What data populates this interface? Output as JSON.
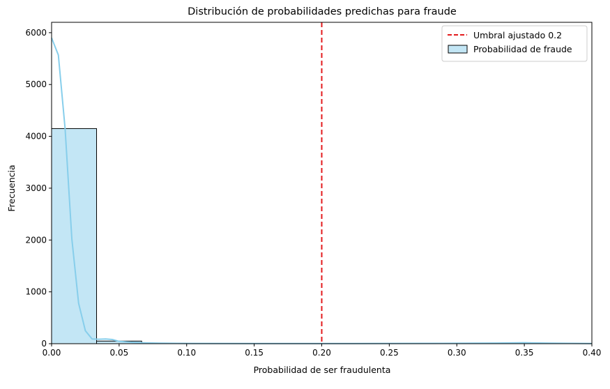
{
  "chart_data": {
    "type": "bar",
    "title": "Distribución de probabilidades predichas para fraude",
    "xlabel": "Probabilidad de ser fraudulenta",
    "ylabel": "Frecuencia",
    "xlim": [
      0.0,
      0.4
    ],
    "ylim": [
      0,
      6200
    ],
    "xticks": [
      0.0,
      0.05,
      0.1,
      0.15,
      0.2,
      0.25,
      0.3,
      0.35,
      0.4
    ],
    "xtick_labels": [
      "0.00",
      "0.05",
      "0.10",
      "0.15",
      "0.20",
      "0.25",
      "0.30",
      "0.35",
      "0.40"
    ],
    "yticks": [
      0,
      1000,
      2000,
      3000,
      4000,
      5000,
      6000
    ],
    "ytick_labels": [
      "0",
      "1000",
      "2000",
      "3000",
      "4000",
      "5000",
      "6000"
    ],
    "grid": false,
    "legend_position": "top-right",
    "histogram": {
      "name": "Probabilidad de fraude",
      "bin_width": 0.0333,
      "bins": [
        {
          "start": 0.0,
          "end": 0.0333,
          "count": 4150
        },
        {
          "start": 0.0333,
          "end": 0.0667,
          "count": 50
        },
        {
          "start": 0.0667,
          "end": 0.1,
          "count": 8
        },
        {
          "start": 0.1,
          "end": 0.1333,
          "count": 4
        },
        {
          "start": 0.1333,
          "end": 0.1667,
          "count": 3
        },
        {
          "start": 0.1667,
          "end": 0.2,
          "count": 2
        },
        {
          "start": 0.2,
          "end": 0.2333,
          "count": 2
        },
        {
          "start": 0.2333,
          "end": 0.2667,
          "count": 2
        },
        {
          "start": 0.2667,
          "end": 0.3,
          "count": 2
        },
        {
          "start": 0.3,
          "end": 0.3333,
          "count": 2
        },
        {
          "start": 0.3333,
          "end": 0.3667,
          "count": 3
        },
        {
          "start": 0.3667,
          "end": 0.4,
          "count": 2
        }
      ],
      "fill_color": "#87ceeb",
      "edge_color": "#000000"
    },
    "kde": {
      "color": "#87ceeb",
      "x": [
        0.0,
        0.005,
        0.01,
        0.015,
        0.02,
        0.025,
        0.03,
        0.035,
        0.04,
        0.045,
        0.05,
        0.06,
        0.07,
        0.08,
        0.1,
        0.15,
        0.2,
        0.25,
        0.3,
        0.33,
        0.35,
        0.37,
        0.4
      ],
      "y": [
        5900,
        5570,
        4150,
        2020,
        780,
        250,
        90,
        85,
        90,
        80,
        45,
        25,
        15,
        10,
        5,
        3,
        3,
        5,
        8,
        12,
        18,
        10,
        3
      ]
    },
    "threshold": {
      "label": "Umbral ajustado 0.2",
      "x": 0.2,
      "color": "#e31a1c",
      "style": "dashed"
    }
  }
}
